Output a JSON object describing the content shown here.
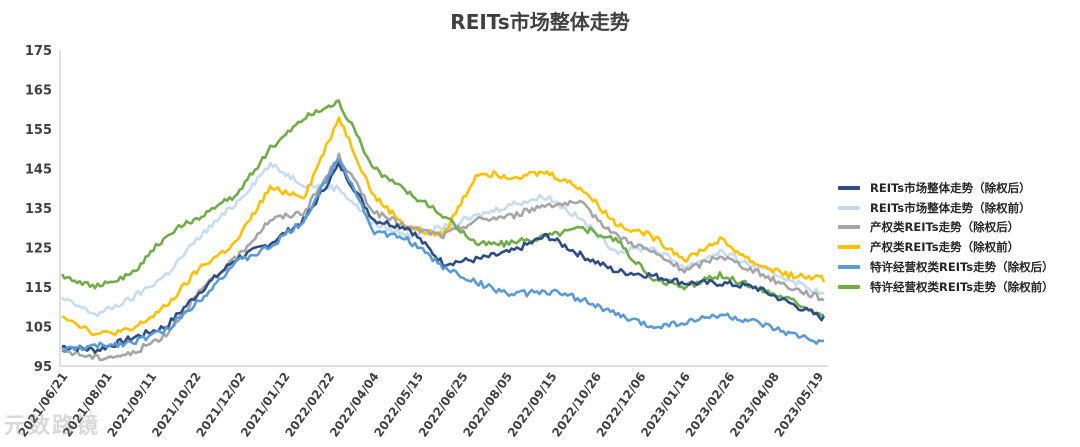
{
  "chart_data": {
    "type": "line",
    "title": "REITs市场整体走势",
    "xlabel": "",
    "ylabel": "",
    "ylim": [
      95,
      175
    ],
    "yticks": [
      95,
      105,
      115,
      125,
      135,
      145,
      155,
      165,
      175
    ],
    "x_tick_labels": [
      "2021/06/21",
      "2021/08/01",
      "2021/09/11",
      "2021/10/22",
      "2021/12/02",
      "2021/01/12",
      "2022/02/22",
      "2022/04/04",
      "2022/05/15",
      "2022/06/25",
      "2022/08/05",
      "2022/09/15",
      "2022/10/26",
      "2022/12/06",
      "2023/01/16",
      "2023/02/26",
      "2023/04/08",
      "2023/05/19"
    ],
    "legend_position": "right",
    "grid": false,
    "series": [
      {
        "name": "REITs市场整体走势（除权后）",
        "color": "#2e4d87",
        "values": [
          100,
          99,
          102,
          105,
          114,
          122,
          126,
          132,
          146,
          132,
          130,
          121,
          122,
          124,
          128,
          123,
          119,
          118,
          116,
          116,
          115,
          111,
          107
        ]
      },
      {
        "name": "REITs市场整体走势（除权前）",
        "color": "#c5dcf1",
        "values": [
          112,
          108,
          112,
          118,
          128,
          136,
          146,
          141,
          140,
          131,
          128,
          130,
          133,
          136,
          138,
          132,
          124,
          125,
          120,
          124,
          120,
          117,
          113
        ]
      },
      {
        "name": "产权类REITs走势（除权后）",
        "color": "#a5a5a5",
        "values": [
          99,
          97,
          98,
          103,
          114,
          122,
          132,
          134,
          148,
          134,
          130,
          128,
          132,
          133,
          136,
          136,
          128,
          124,
          119,
          123,
          119,
          115,
          112
        ]
      },
      {
        "name": "产权类REITs走势（除权前）",
        "color": "#ffc000",
        "values": [
          108,
          103,
          104,
          110,
          120,
          126,
          140,
          138,
          158,
          138,
          130,
          128,
          144,
          143,
          144,
          140,
          131,
          128,
          122,
          127,
          121,
          118,
          117
        ]
      },
      {
        "name": "特许经营权类REITs走势（除权后）",
        "color": "#5b9bd5",
        "values": [
          99,
          100,
          101,
          104,
          112,
          121,
          125,
          132,
          148,
          129,
          127,
          120,
          116,
          113,
          114,
          112,
          108,
          105,
          106,
          108,
          106,
          103,
          101
        ]
      },
      {
        "name": "特许经营权类REITs走势（除权前）",
        "color": "#70ad47",
        "values": [
          118,
          115,
          118,
          128,
          133,
          138,
          150,
          158,
          162,
          145,
          139,
          133,
          126,
          126,
          128,
          130,
          127,
          117,
          115,
          118,
          115,
          112,
          108
        ]
      }
    ]
  },
  "watermark": "元数路镜"
}
